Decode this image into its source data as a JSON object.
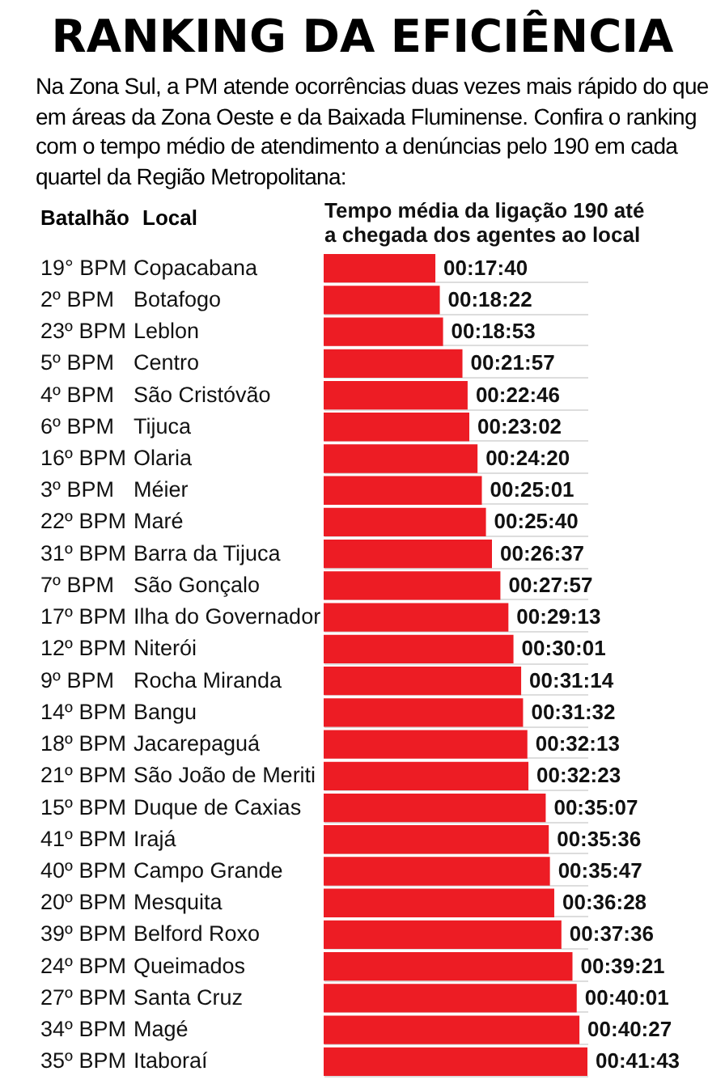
{
  "chart_data": {
    "type": "bar",
    "orientation": "horizontal",
    "title": "RANKING DA EFICIÊNCIA",
    "subtitle": "Na Zona Sul, a PM atende ocorrências duas vezes mais rápido do que em áreas da Zona Oeste e da Baixada Fluminense. Confira o ranking com o tempo médio de atendimento a denúncias pelo 190 em cada quartel da Região Metropolitana:",
    "xlabel": [
      "Tempo média da ligação 190 até",
      "a chegada dos agentes ao local"
    ],
    "categories": [
      "Copacabana",
      "Botafogo",
      "Leblon",
      "Centro",
      "São Cristóvão",
      "Tijuca",
      "Olaria",
      "Méier",
      "Maré",
      "Barra da Tijuca",
      "São Gonçalo",
      "Ilha do Governador",
      "Niterói",
      "Rocha Miranda",
      "Bangu",
      "Jacarepaguá",
      "São João de Meriti",
      "Duque de Caxias",
      "Irajá",
      "Campo Grande",
      "Mesquita",
      "Belford Roxo",
      "Queimados",
      "Santa Cruz",
      "Magé",
      "Itaboraí"
    ],
    "values": [
      1060,
      1102,
      1133,
      1317,
      1366,
      1382,
      1460,
      1501,
      1540,
      1597,
      1677,
      1753,
      1801,
      1874,
      1892,
      1933,
      1943,
      2107,
      2136,
      2147,
      2188,
      2256,
      2361,
      2401,
      2427,
      2503
    ],
    "value_labels": [
      "00:17:40",
      "00:18:22",
      "00:18:53",
      "00:21:57",
      "00:22:46",
      "00:23:02",
      "00:24:20",
      "00:25:01",
      "00:25:40",
      "00:26:37",
      "00:27:57",
      "00:29:13",
      "00:30:01",
      "00:31:14",
      "00:31:32",
      "00:32:13",
      "00:32:23",
      "00:35:07",
      "00:35:36",
      "00:35:47",
      "00:36:28",
      "00:37:36",
      "00:39:21",
      "00:40:01",
      "00:40:27",
      "00:41:43"
    ],
    "color": "#ed1c24",
    "grid": "y",
    "annotations": [
      "Batalhão",
      "Local",
      "19° BPM",
      "2º BPM",
      "23º BPM",
      "5º BPM",
      "4º BPM",
      "6º BPM",
      "16º BPM",
      "3º BPM",
      "22º BPM",
      "31º BPM",
      "7º BPM",
      "17º BPM",
      "12º BPM",
      "9º BPM",
      "14º BPM",
      "18º BPM",
      "21º BPM",
      "15º BPM",
      "41º BPM",
      "40º BPM",
      "20º BPM",
      "39º BPM",
      "24º BPM",
      "27º BPM",
      "34º BPM",
      "35º BPM"
    ]
  }
}
